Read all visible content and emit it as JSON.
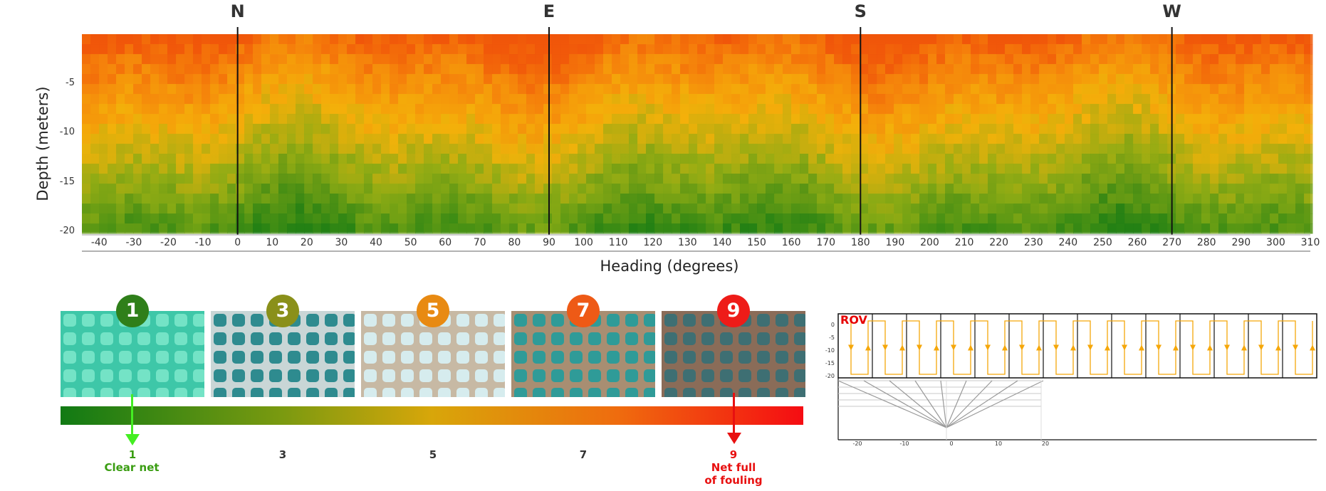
{
  "chart_data": {
    "type": "heatmap",
    "title": "",
    "xlabel": "Heading (degrees)",
    "ylabel": "Depth (meters)",
    "xlim": [
      -45,
      310
    ],
    "ylim": [
      -20,
      0
    ],
    "x_ticks": [
      "-40",
      "-30",
      "-20",
      "-10",
      "0",
      "10",
      "20",
      "30",
      "40",
      "50",
      "60",
      "70",
      "80",
      "90",
      "100",
      "110",
      "120",
      "130",
      "140",
      "150",
      "160",
      "170",
      "180",
      "190",
      "200",
      "210",
      "220",
      "230",
      "240",
      "250",
      "260",
      "270",
      "280",
      "290",
      "300",
      "310"
    ],
    "y_ticks": [
      "-5",
      "-10",
      "-15",
      "-20"
    ],
    "compass_markers": [
      {
        "label": "N",
        "heading": 0
      },
      {
        "label": "E",
        "heading": 90
      },
      {
        "label": "S",
        "heading": 180
      },
      {
        "label": "W",
        "heading": 270
      }
    ],
    "color_scale": {
      "low": "#127d12",
      "mid": "#f3b10a",
      "high": "#f15a0a"
    },
    "fouling_profile_by_depth": [
      {
        "depth": -1,
        "level": 8.2
      },
      {
        "depth": -5,
        "level": 7.2
      },
      {
        "depth": -10,
        "level": 5.8
      },
      {
        "depth": -15,
        "level": 4.3
      },
      {
        "depth": -19,
        "level": 2.6
      }
    ]
  },
  "fouling_scale": {
    "levels": [
      {
        "value": "1",
        "color": "#2f7f1a",
        "desc": "Clear net",
        "desc_color": "#3a9d12"
      },
      {
        "value": "3",
        "color": "#8a901a",
        "desc": ""
      },
      {
        "value": "5",
        "color": "#e88a12",
        "desc": ""
      },
      {
        "value": "7",
        "color": "#ee5a16",
        "desc": ""
      },
      {
        "value": "9",
        "color": "#ee1c18",
        "desc": "Net full of fouling",
        "desc_line1": "Net full",
        "desc_line2": "of fouling",
        "desc_color": "#e81010"
      }
    ],
    "arrow_low_color": "#44ee22",
    "arrow_high_color": "#e81010"
  },
  "rov_diagram": {
    "label": "ROV",
    "path_color": "#f5a70a",
    "y_ticks": [
      "0",
      "-5",
      "-10",
      "-15",
      "-20"
    ],
    "x_ticks": [
      "-20",
      "-10",
      "0",
      "10",
      "20"
    ]
  }
}
